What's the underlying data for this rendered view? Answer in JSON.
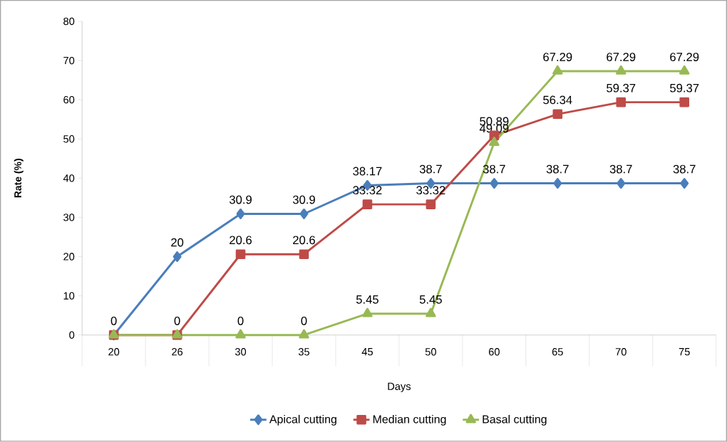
{
  "chart_data": {
    "type": "line",
    "xlabel": "Days",
    "ylabel": "Rate (%)",
    "categories": [
      "20",
      "26",
      "30",
      "35",
      "45",
      "50",
      "60",
      "65",
      "70",
      "75"
    ],
    "ylim": [
      0,
      80
    ],
    "yticks": [
      0,
      10,
      20,
      30,
      40,
      50,
      60,
      70,
      80
    ],
    "legend": "bottom",
    "series": [
      {
        "name": "Apical cutting",
        "color": "#4a7ebb",
        "marker": "diamond",
        "values": [
          0,
          20,
          30.9,
          30.9,
          38.17,
          38.7,
          38.7,
          38.7,
          38.7,
          38.7
        ],
        "value_labels": [
          null,
          "20",
          "30.9",
          "30.9",
          "38.17",
          "38.7",
          "38.7",
          "38.7",
          "38.7",
          "38.7"
        ]
      },
      {
        "name": "Median cutting",
        "color": "#be4b48",
        "marker": "square",
        "values": [
          0,
          0,
          20.6,
          20.6,
          33.32,
          33.32,
          50.89,
          56.34,
          59.37,
          59.37
        ],
        "value_labels": [
          null,
          null,
          "20.6",
          "20.6",
          "33.32",
          "33.32",
          "50.89",
          "56.34",
          "59.37",
          "59.37"
        ]
      },
      {
        "name": "Basal cutting",
        "color": "#98b954",
        "marker": "triangle",
        "values": [
          0,
          0,
          0,
          0,
          5.45,
          5.45,
          49.09,
          67.29,
          67.29,
          67.29
        ],
        "value_labels": [
          "0",
          "0",
          "0",
          "0",
          "5.45",
          "5.45",
          "49.09",
          "67.29",
          "67.29",
          "67.29"
        ]
      }
    ]
  }
}
